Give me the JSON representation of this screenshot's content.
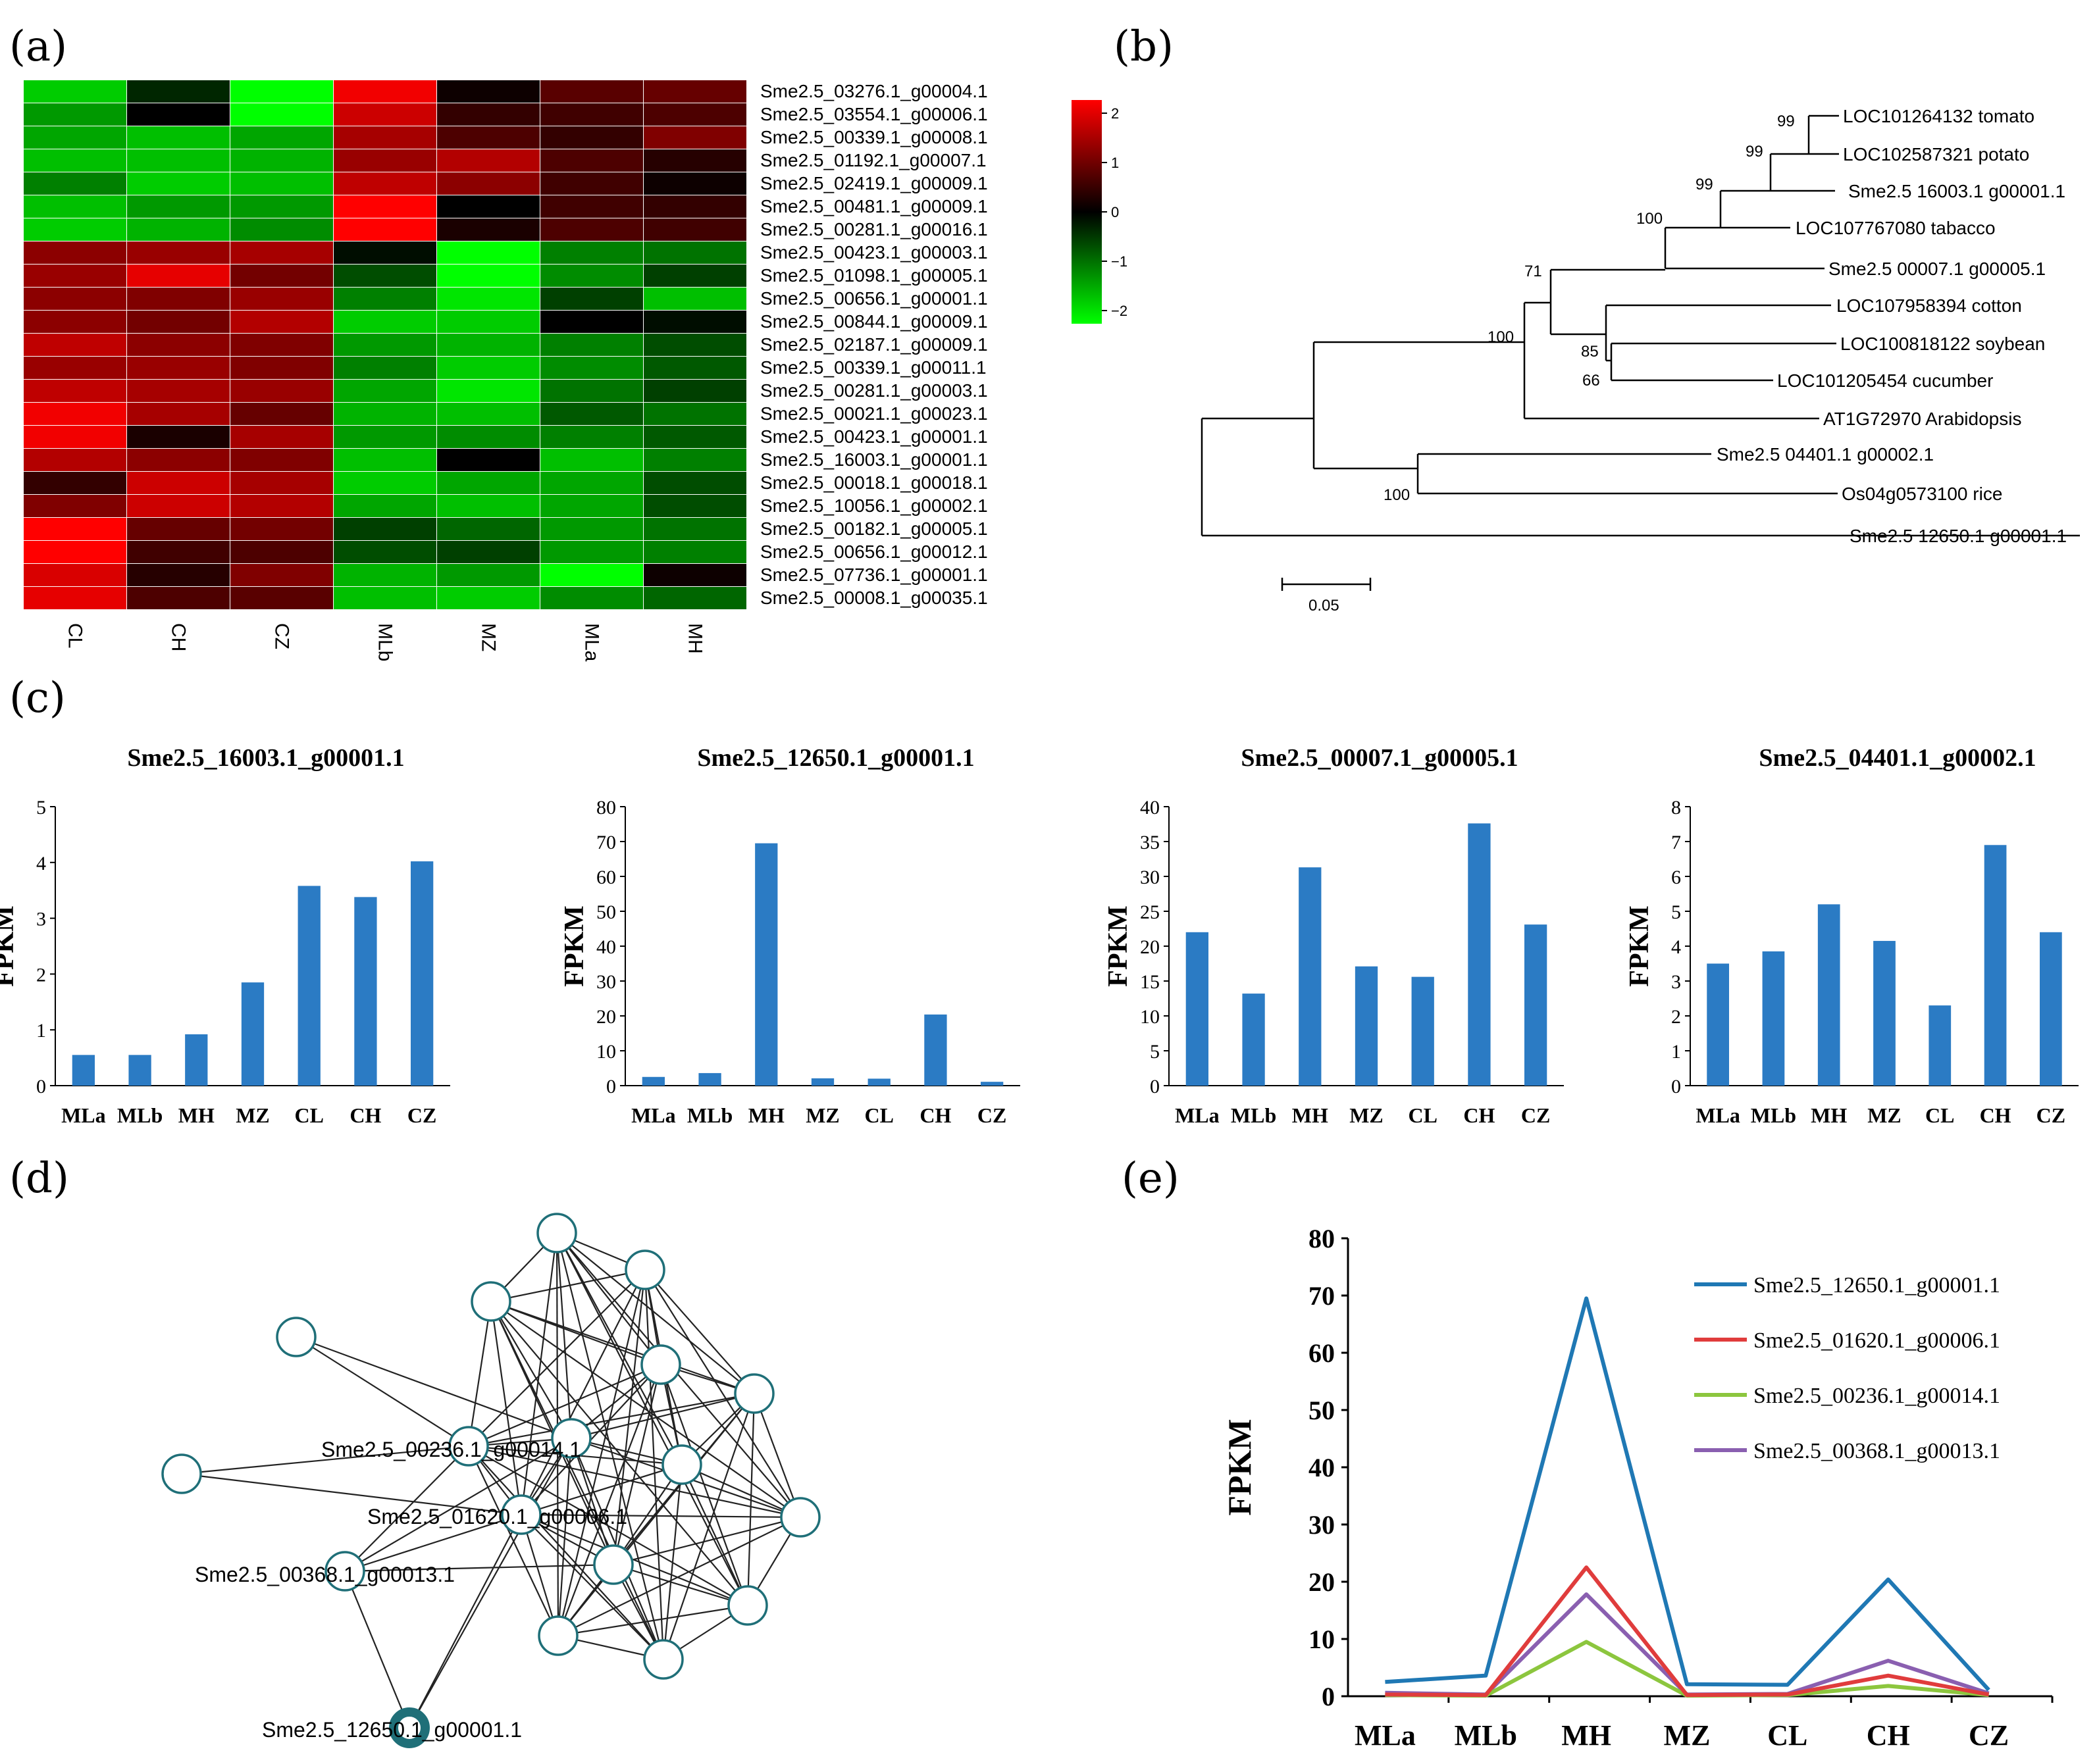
{
  "panels": {
    "a": "(a)",
    "b": "(b)",
    "c": "(c)",
    "d": "(d)",
    "e": "(e)"
  },
  "heatmap": {
    "samples": [
      "CL",
      "CH",
      "CZ",
      "MLb",
      "MZ",
      "MLa",
      "MH"
    ],
    "genes": [
      "Sme2.5_03276.1_g00004.1",
      "Sme2.5_03554.1_g00006.1",
      "Sme2.5_00339.1_g00008.1",
      "Sme2.5_01192.1_g00007.1",
      "Sme2.5_02419.1_g00009.1",
      "Sme2.5_00481.1_g00009.1",
      "Sme2.5_00281.1_g00016.1",
      "Sme2.5_00423.1_g00003.1",
      "Sme2.5_01098.1_g00005.1",
      "Sme2.5_00656.1_g00001.1",
      "Sme2.5_00844.1_g00009.1",
      "Sme2.5_02187.1_g00009.1",
      "Sme2.5_00339.1_g00011.1",
      "Sme2.5_00281.1_g00003.1",
      "Sme2.5_00021.1_g00023.1",
      "Sme2.5_00423.1_g00001.1",
      "Sme2.5_16003.1_g00001.1",
      "Sme2.5_00018.1_g00018.1",
      "Sme2.5_10056.1_g00002.1",
      "Sme2.5_00182.1_g00005.1",
      "Sme2.5_00656.1_g00012.1",
      "Sme2.5_07736.1_g00001.1",
      "Sme2.5_00008.1_g00035.1"
    ],
    "values": [
      [
        -1.6,
        -0.3,
        -2.0,
        1.9,
        0.1,
        0.7,
        0.8
      ],
      [
        -1.2,
        0.0,
        -2.1,
        1.6,
        0.4,
        0.5,
        0.6
      ],
      [
        -1.3,
        -1.5,
        -1.3,
        1.3,
        0.6,
        0.4,
        1.0
      ],
      [
        -1.5,
        -1.5,
        -1.4,
        1.2,
        1.4,
        0.6,
        0.3
      ],
      [
        -1.0,
        -1.6,
        -1.5,
        1.5,
        1.1,
        0.5,
        0.1
      ],
      [
        -1.5,
        -1.2,
        -1.2,
        2.0,
        0.0,
        0.5,
        0.4
      ],
      [
        -1.6,
        -1.4,
        -1.1,
        2.0,
        0.2,
        0.6,
        0.5
      ],
      [
        1.1,
        1.2,
        1.3,
        -0.1,
        -2.1,
        -1.0,
        -0.9
      ],
      [
        1.2,
        1.8,
        0.9,
        -0.6,
        -2.1,
        -1.1,
        -0.5
      ],
      [
        1.1,
        1.0,
        1.2,
        -1.0,
        -1.8,
        -0.5,
        -1.5
      ],
      [
        1.1,
        0.9,
        1.4,
        -1.6,
        -1.6,
        0.0,
        -0.1
      ],
      [
        1.5,
        1.1,
        1.0,
        -1.2,
        -1.4,
        -1.0,
        -0.6
      ],
      [
        1.2,
        1.2,
        1.0,
        -1.0,
        -1.6,
        -1.1,
        -0.7
      ],
      [
        1.5,
        1.3,
        1.2,
        -1.3,
        -1.8,
        -0.9,
        -0.5
      ],
      [
        1.9,
        1.3,
        0.8,
        -1.4,
        -1.5,
        -0.7,
        -0.9
      ],
      [
        1.9,
        0.2,
        1.3,
        -1.2,
        -1.1,
        -1.0,
        -0.7
      ],
      [
        1.4,
        1.1,
        1.0,
        -1.5,
        0.0,
        -1.5,
        -1.0
      ],
      [
        0.4,
        1.6,
        1.3,
        -1.6,
        -1.3,
        -1.3,
        -0.6
      ],
      [
        1.0,
        1.6,
        1.4,
        -1.3,
        -1.5,
        -1.3,
        -0.6
      ],
      [
        2.0,
        0.8,
        0.9,
        -0.5,
        -0.8,
        -1.2,
        -0.9
      ],
      [
        2.0,
        0.5,
        0.6,
        -0.6,
        -0.5,
        -1.2,
        -1.0
      ],
      [
        1.7,
        0.3,
        1.0,
        -1.4,
        -1.2,
        -2.0,
        0.1
      ],
      [
        1.8,
        0.6,
        0.7,
        -1.5,
        -1.6,
        -1.1,
        -0.8
      ]
    ],
    "colorbar": {
      "ticks": [
        "2",
        "1",
        "0",
        "−1",
        "−2"
      ],
      "colors": {
        "high": "#ff0000",
        "mid": "#000000",
        "low": "#00ff00"
      }
    }
  },
  "tree": {
    "taxa": [
      "LOC101264132 tomato",
      "LOC102587321 potato",
      "Sme2.5 16003.1 g00001.1",
      "LOC107767080 tabacco",
      "Sme2.5 00007.1 g00005.1",
      "LOC107958394 cotton",
      "LOC100818122 soybean",
      "LOC101205454 cucumber",
      "AT1G72970 Arabidopsis",
      "Sme2.5 04401.1 g00002.1",
      "Os04g0573100 rice",
      "Sme2.5 12650.1 g00001.1"
    ],
    "bootstraps": [
      "99",
      "99",
      "99",
      "100",
      "71",
      "85",
      "66",
      "100",
      "100"
    ],
    "scale_label": "0.05"
  },
  "chart_data": [
    {
      "type": "bar",
      "title": "Sme2.5_16003.1_g00001.1",
      "ylabel": "FPKM",
      "categories": [
        "MLa",
        "MLb",
        "MH",
        "MZ",
        "CL",
        "CH",
        "CZ"
      ],
      "values": [
        0.55,
        0.55,
        0.92,
        1.85,
        3.58,
        3.38,
        4.02
      ],
      "ylim": [
        0,
        5
      ],
      "yticks": [
        0,
        1,
        2,
        3,
        4,
        5
      ],
      "color": "#2b7bc4"
    },
    {
      "type": "bar",
      "title": "Sme2.5_12650.1_g00001.1",
      "ylabel": "FPKM",
      "categories": [
        "MLa",
        "MLb",
        "MH",
        "MZ",
        "CL",
        "CH",
        "CZ"
      ],
      "values": [
        2.5,
        3.6,
        69.5,
        2.1,
        2.0,
        20.4,
        1.1
      ],
      "ylim": [
        0,
        80
      ],
      "yticks": [
        0,
        10,
        20,
        30,
        40,
        50,
        60,
        70,
        80
      ],
      "color": "#2b7bc4"
    },
    {
      "type": "bar",
      "title": "Sme2.5_00007.1_g00005.1",
      "ylabel": "FPKM",
      "categories": [
        "MLa",
        "MLb",
        "MH",
        "MZ",
        "CL",
        "CH",
        "CZ"
      ],
      "values": [
        22.0,
        13.2,
        31.3,
        17.1,
        15.6,
        37.6,
        23.1
      ],
      "ylim": [
        0,
        40
      ],
      "yticks": [
        0,
        5,
        10,
        15,
        20,
        25,
        30,
        35,
        40
      ],
      "color": "#2b7bc4"
    },
    {
      "type": "bar",
      "title": "Sme2.5_04401.1_g00002.1",
      "ylabel": "FPKM",
      "categories": [
        "MLa",
        "MLb",
        "MH",
        "MZ",
        "CL",
        "CH",
        "CZ"
      ],
      "values": [
        3.5,
        3.85,
        5.2,
        4.15,
        2.3,
        6.9,
        4.4
      ],
      "ylim": [
        0,
        8
      ],
      "yticks": [
        0,
        1,
        2,
        3,
        4,
        5,
        6,
        7,
        8
      ],
      "color": "#2b7bc4"
    },
    {
      "type": "line",
      "title": "",
      "ylabel": "FPKM",
      "categories": [
        "MLa",
        "MLb",
        "MH",
        "MZ",
        "CL",
        "CH",
        "CZ"
      ],
      "ylim": [
        0,
        80
      ],
      "yticks": [
        0,
        10,
        20,
        30,
        40,
        50,
        60,
        70,
        80
      ],
      "legend": "top-right",
      "series": [
        {
          "name": "Sme2.5_12650.1_g00001.1",
          "color": "#1f78b4",
          "values": [
            2.5,
            3.6,
            69.5,
            2.1,
            2.0,
            20.4,
            1.1
          ]
        },
        {
          "name": "Sme2.5_01620.1_g00006.1",
          "color": "#e03c3c",
          "values": [
            0.3,
            0.2,
            22.5,
            0.2,
            0.3,
            3.6,
            0.3
          ]
        },
        {
          "name": "Sme2.5_00236.1_g00014.1",
          "color": "#8cc63e",
          "values": [
            0.2,
            0.1,
            9.5,
            0.1,
            0.2,
            1.8,
            0.2
          ]
        },
        {
          "name": "Sme2.5_00368.1_g00013.1",
          "color": "#8a5fb0",
          "values": [
            0.6,
            0.3,
            17.8,
            0.3,
            0.4,
            6.2,
            0.5
          ]
        }
      ]
    }
  ],
  "network": {
    "labels": [
      "Sme2.5_00236.1_g00014.1",
      "Sme2.5_01620.1_g00006.1",
      "Sme2.5_00368.1_g00013.1",
      "Sme2.5_12650.1_g00001.1"
    ],
    "node_color": "#1f6f78"
  }
}
